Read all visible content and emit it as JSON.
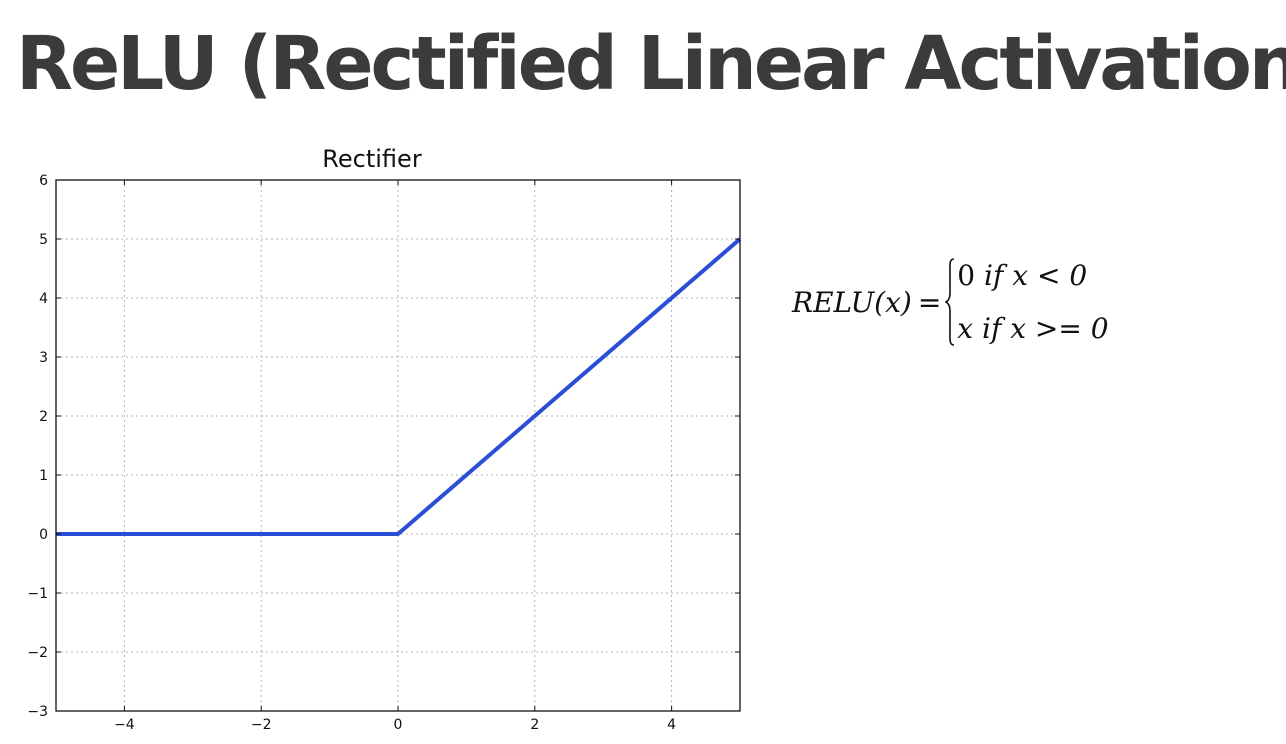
{
  "slide": {
    "title": "ReLU (Rectified Linear Activation)"
  },
  "chart_data": {
    "type": "line",
    "title": "Rectifier",
    "xlabel": "",
    "ylabel": "",
    "xlim": [
      -5,
      5
    ],
    "ylim": [
      -3,
      6
    ],
    "xticks": [
      -4,
      -2,
      0,
      2,
      4
    ],
    "xtick_labels": [
      "−4",
      "−2",
      "0",
      "2",
      "4"
    ],
    "yticks": [
      -3,
      -2,
      -1,
      0,
      1,
      2,
      3,
      4,
      5,
      6
    ],
    "ytick_labels": [
      "−3",
      "−2",
      "−1",
      "0",
      "1",
      "2",
      "3",
      "4",
      "5",
      "6"
    ],
    "grid": true,
    "legend": "none",
    "series": [
      {
        "x": [
          -5,
          0,
          5
        ],
        "y": [
          0,
          0,
          5
        ],
        "color": "#2a4fd6"
      }
    ]
  },
  "formula": {
    "lhs": "RELU(x)",
    "equals": "=",
    "cases": [
      {
        "expr": "0",
        "cond_word": "if",
        "cond": "x < 0"
      },
      {
        "expr": "x",
        "cond_word": "if",
        "cond": "x >= 0"
      }
    ]
  }
}
